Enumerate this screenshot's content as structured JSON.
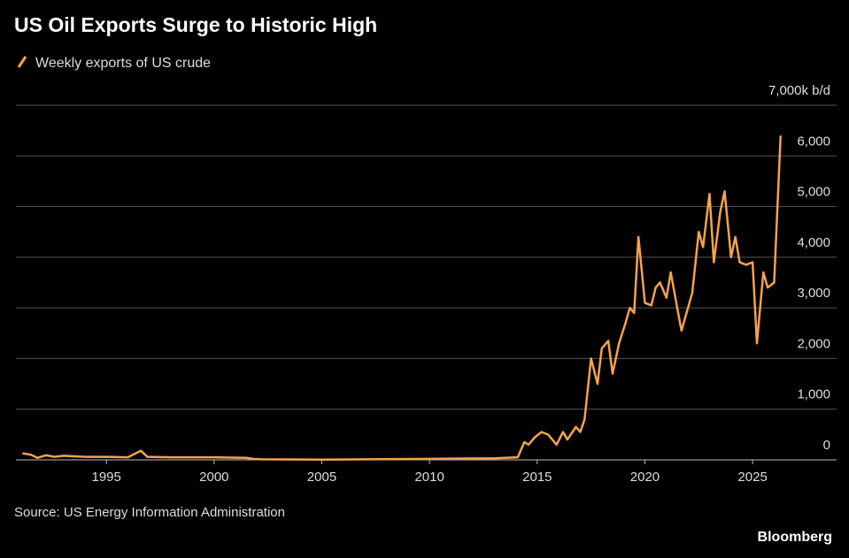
{
  "chart_data": {
    "type": "line",
    "title": "US Oil Exports Surge to Historic High",
    "source": "Source: US Energy Information Administration",
    "brand": "Bloomberg",
    "series": [
      {
        "name": "Weekly exports of US crude",
        "color": "#f5a34a",
        "x": [
          1991.1,
          1991.5,
          1991.8,
          1992.2,
          1992.6,
          1993.0,
          1993.5,
          1994.0,
          1995.0,
          1996.0,
          1996.6,
          1996.9,
          1998.0,
          2000.0,
          2001.5,
          2001.8,
          2002.2,
          2005.0,
          2010.0,
          2013.0,
          2014.1,
          2014.4,
          2014.6,
          2014.9,
          2015.2,
          2015.5,
          2015.9,
          2016.2,
          2016.4,
          2016.8,
          2017.0,
          2017.2,
          2017.5,
          2017.8,
          2018.0,
          2018.3,
          2018.5,
          2018.8,
          2019.1,
          2019.3,
          2019.5,
          2019.7,
          2020.0,
          2020.3,
          2020.5,
          2020.7,
          2021.0,
          2021.2,
          2021.5,
          2021.7,
          2022.0,
          2022.2,
          2022.5,
          2022.7,
          2023.0,
          2023.2,
          2023.5,
          2023.7,
          2024.0,
          2024.2,
          2024.4,
          2024.7,
          2025.0,
          2025.2,
          2025.5,
          2025.7,
          2026.0,
          2026.3
        ],
        "values": [
          130,
          100,
          40,
          90,
          60,
          80,
          70,
          60,
          60,
          50,
          180,
          60,
          50,
          50,
          40,
          20,
          10,
          5,
          20,
          30,
          50,
          350,
          300,
          450,
          550,
          500,
          300,
          550,
          400,
          650,
          550,
          800,
          2000,
          1500,
          2200,
          2350,
          1700,
          2300,
          2700,
          3000,
          2900,
          4400,
          3100,
          3050,
          3400,
          3500,
          3200,
          3700,
          3000,
          2550,
          3000,
          3300,
          4500,
          4200,
          5250,
          3900,
          4900,
          5300,
          4000,
          4400,
          3900,
          3850,
          3900,
          2300,
          3700,
          3400,
          3500,
          6400
        ]
      }
    ],
    "xlim": [
      1990.8,
      2028.9
    ],
    "xticks": [
      1995,
      2000,
      2005,
      2010,
      2015,
      2020,
      2025
    ],
    "ylim": [
      0,
      7000
    ],
    "yticks": [
      0,
      {
        "value": 1000,
        "label": "1,000"
      },
      {
        "value": 2000,
        "label": "2,000"
      },
      {
        "value": 3000,
        "label": "3,000"
      },
      {
        "value": 4000,
        "label": "4,000"
      },
      {
        "value": 5000,
        "label": "5,000"
      },
      {
        "value": 6000,
        "label": "6,000"
      },
      {
        "value": 7000,
        "label": "7,000k b/d"
      }
    ],
    "grid": true
  }
}
